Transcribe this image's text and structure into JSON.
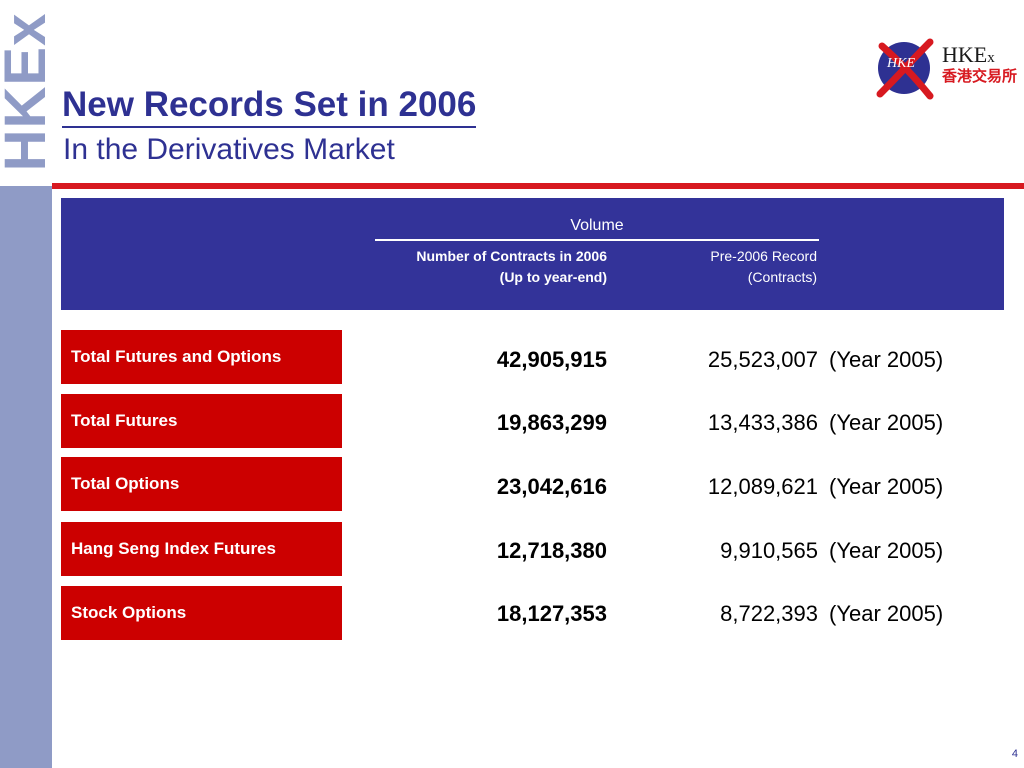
{
  "side_logo": "HKEx",
  "title": "New Records Set in 2006",
  "subtitle": "In the Derivatives Market",
  "logo": {
    "badge": "HKE",
    "name_main": "HKE",
    "name_small": "x",
    "name_cn": "香港交易所"
  },
  "table": {
    "group_header": "Volume",
    "col1_line1": "Number of Contracts in 2006",
    "col1_line2": "(Up to year-end)",
    "col2_line1": "Pre-2006 Record",
    "col2_line2": "(Contracts)",
    "rows": [
      {
        "label": "Total Futures and Options",
        "value": "42,905,915",
        "record": "25,523,007",
        "year": "(Year 2005)"
      },
      {
        "label": "Total Futures",
        "value": "19,863,299",
        "record": "13,433,386",
        "year": "(Year 2005)"
      },
      {
        "label": "Total Options",
        "value": "23,042,616",
        "record": "12,089,621",
        "year": "(Year 2005)"
      },
      {
        "label": "Hang Seng Index Futures",
        "value": "12,718,380",
        "record": "9,910,565",
        "year": "(Year 2005)"
      },
      {
        "label": "Stock Options",
        "value": "18,127,353",
        "record": "8,722,393",
        "year": "(Year 2005)"
      }
    ]
  },
  "page_number": "4",
  "colors": {
    "navy": "#2e3192",
    "panel": "#333399",
    "red": "#cc0000",
    "side_bar": "#8f9bc6"
  }
}
